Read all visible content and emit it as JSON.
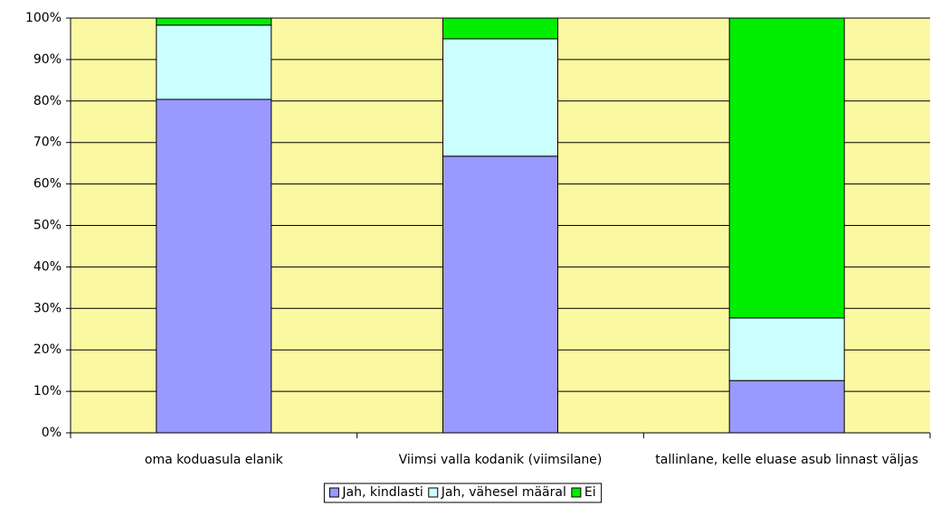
{
  "chart_data": {
    "type": "stacked_bar_100",
    "categories": [
      "oma koduasula elanik",
      "Viimsi valla kodanik (viimsilane)",
      "tallinlane, kelle eluase asub linnast väljas"
    ],
    "series": [
      {
        "name": "Jah, kindlasti",
        "color": "#9999ff",
        "values": [
          80.4,
          66.7,
          12.6
        ]
      },
      {
        "name": "Jah, vähesel määral",
        "color": "#ccffff",
        "values": [
          17.9,
          28.3,
          15.1
        ]
      },
      {
        "name": "Ei",
        "color": "#00ee00",
        "values": [
          1.7,
          5.0,
          72.3
        ]
      }
    ],
    "ylim": [
      0,
      100
    ],
    "yticks": [
      {
        "value": 0,
        "label": "0%"
      },
      {
        "value": 10,
        "label": "10%"
      },
      {
        "value": 20,
        "label": "20%"
      },
      {
        "value": 30,
        "label": "30%"
      },
      {
        "value": 40,
        "label": "40%"
      },
      {
        "value": 50,
        "label": "50%"
      },
      {
        "value": 60,
        "label": "60%"
      },
      {
        "value": 70,
        "label": "70%"
      },
      {
        "value": 80,
        "label": "80%"
      },
      {
        "value": 90,
        "label": "90%"
      },
      {
        "value": 100,
        "label": "100%"
      }
    ],
    "grid": true,
    "plot_background": "#fbf8a2",
    "legend": "bottom"
  }
}
